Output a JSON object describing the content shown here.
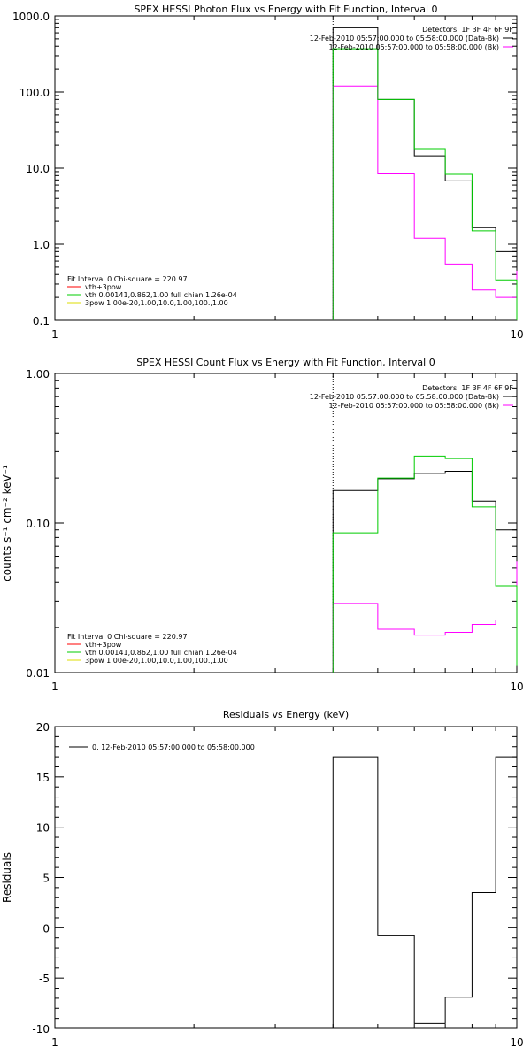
{
  "chart_data": [
    {
      "type": "line",
      "title": "SPEX HESSI Photon Flux vs Energy with Fit Function, Interval 0",
      "xlabel": "",
      "ylabel": "",
      "xscale": "log",
      "yscale": "log",
      "xlim": [
        1,
        10
      ],
      "ylim": [
        0.1,
        1000
      ],
      "x_ticks": [
        1,
        10
      ],
      "x_tick_labels": [
        "1",
        "10"
      ],
      "y_ticks": [
        0.1,
        1,
        10,
        100,
        1000
      ],
      "y_tick_labels": [
        "0.1",
        "1.0",
        "10.0",
        "100.0",
        "1000.0"
      ],
      "vline": 4.0,
      "info_lines": [
        "Detectors: 1F 3F 4F 6F 9F",
        "12-Feb-2010 05:57:00.000 to 05:58:00.000 (Data-Bk)",
        "12-Feb-2010 05:57:00.000 to 05:58:00.000 (Bk)"
      ],
      "fit_header": "Fit Interval 0    Chi-square = 220.97",
      "fit_legend": [
        {
          "label": "vth+3pow",
          "color": "#ff0000"
        },
        {
          "label": "vth 0.00141,0.862,1.00  full chian 1.26e-04",
          "color": "#00cc00"
        },
        {
          "label": "3pow 1.00e-20,1.00,10.0,1.00,100.,1.00",
          "color": "#dddd00"
        }
      ],
      "series": [
        {
          "name": "12-Feb-2010 05:57:00.000 to 05:58:00.000 (Data-Bk)",
          "color": "#000000",
          "edges": [
            4.0,
            5.0,
            6.0,
            7.0,
            8.0,
            9.0,
            10.0
          ],
          "values": [
            700,
            80,
            14.5,
            6.8,
            1.65,
            0.8,
            0.38
          ]
        },
        {
          "name": "12-Feb-2010 05:57:00.000 to 05:58:00.000 (Bk)",
          "color": "#ff00ff",
          "edges": [
            4.0,
            5.0,
            6.0,
            7.0,
            8.0,
            9.0,
            10.0
          ],
          "values": [
            120,
            8.4,
            1.2,
            0.55,
            0.25,
            0.2,
            0.45
          ]
        },
        {
          "name": "vth",
          "color": "#00cc00",
          "edges": [
            4.0,
            5.0,
            6.0,
            7.0,
            8.0,
            9.0,
            10.0
          ],
          "values": [
            370,
            80,
            18,
            8.3,
            1.5,
            0.34,
            0.1
          ]
        }
      ]
    },
    {
      "type": "line",
      "title": "SPEX HESSI Count Flux vs Energy with Fit Function, Interval 0",
      "xlabel": "",
      "ylabel": "counts s⁻¹ cm⁻² keV⁻¹",
      "xscale": "log",
      "yscale": "log",
      "xlim": [
        1,
        10
      ],
      "ylim": [
        0.01,
        1.0
      ],
      "x_ticks": [
        1,
        10
      ],
      "x_tick_labels": [
        "1",
        "10"
      ],
      "y_ticks": [
        0.01,
        0.1,
        1.0
      ],
      "y_tick_labels": [
        "0.01",
        "0.10",
        "1.00"
      ],
      "vline": 4.0,
      "info_lines": [
        "Detectors: 1F 3F 4F 6F 9F",
        "12-Feb-2010 05:57:00.000 to 05:58:00.000 (Data-Bk)",
        "12-Feb-2010 05:57:00.000 to 05:58:00.000 (Bk)"
      ],
      "fit_header": "Fit Interval 0    Chi-square = 220.97",
      "fit_legend": [
        {
          "label": "vth+3pow",
          "color": "#ff0000"
        },
        {
          "label": "vth 0.00141,0.862,1.00  full chian 1.26e-04",
          "color": "#00cc00"
        },
        {
          "label": "3pow 1.00e-20,1.00,10.0,1.00,100.,1.00",
          "color": "#dddd00"
        }
      ],
      "series": [
        {
          "name": "12-Feb-2010 05:57:00.000 to 05:58:00.000 (Data-Bk)",
          "color": "#000000",
          "edges": [
            4.0,
            5.0,
            6.0,
            7.0,
            8.0,
            9.0,
            10.0
          ],
          "values": [
            0.165,
            0.198,
            0.215,
            0.222,
            0.14,
            0.09,
            0.047
          ]
        },
        {
          "name": "12-Feb-2010 05:57:00.000 to 05:58:00.000 (Bk)",
          "color": "#ff00ff",
          "edges": [
            4.0,
            5.0,
            6.0,
            7.0,
            8.0,
            9.0,
            10.0
          ],
          "values": [
            0.029,
            0.0195,
            0.0178,
            0.0186,
            0.021,
            0.0225,
            0.0555
          ]
        },
        {
          "name": "vth",
          "color": "#00cc00",
          "edges": [
            4.0,
            5.0,
            6.0,
            7.0,
            8.0,
            9.0,
            10.0
          ],
          "values": [
            0.086,
            0.2,
            0.28,
            0.27,
            0.128,
            0.038,
            0.0112
          ]
        }
      ]
    },
    {
      "type": "line",
      "title": "Residuals vs Energy (keV)",
      "xlabel": "",
      "ylabel": "Residuals",
      "xscale": "log",
      "yscale": "linear",
      "xlim": [
        1,
        10
      ],
      "ylim": [
        -10,
        20
      ],
      "x_ticks": [
        1,
        10
      ],
      "x_tick_labels": [
        "1",
        "10"
      ],
      "y_ticks": [
        -10,
        -5,
        0,
        5,
        10,
        15,
        20
      ],
      "y_tick_labels": [
        "-10",
        "-5",
        "0",
        "5",
        "10",
        "15",
        "20"
      ],
      "legend": [
        "0. 12-Feb-2010 05:57:00.000 to 05:58:00.000"
      ],
      "series": [
        {
          "name": "0. 12-Feb-2010 05:57:00.000 to 05:58:00.000",
          "color": "#000000",
          "edges": [
            4.0,
            5.0,
            6.0,
            7.0,
            8.0,
            9.0,
            10.0
          ],
          "values": [
            17,
            -0.8,
            -9.5,
            -6.9,
            3.5,
            17,
            13
          ]
        }
      ]
    }
  ]
}
